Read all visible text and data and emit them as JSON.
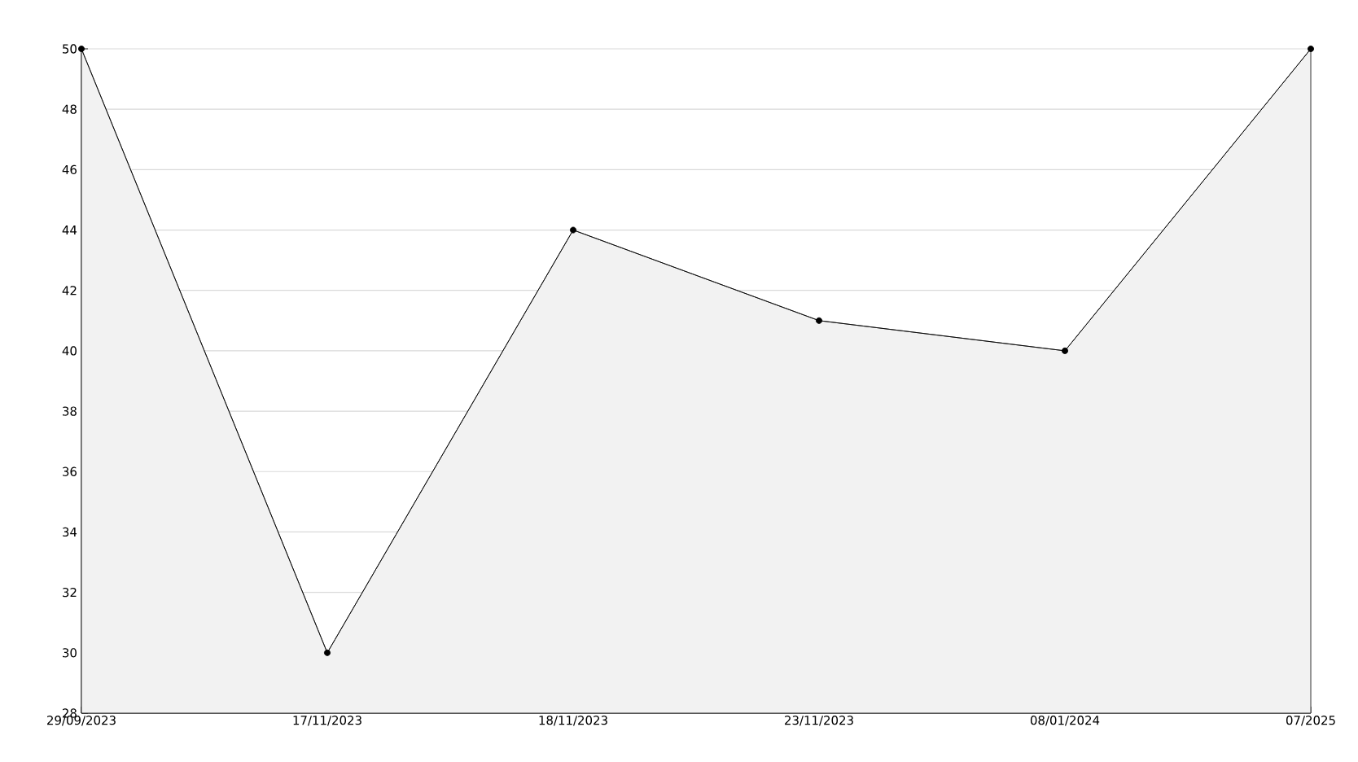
{
  "chart_data": {
    "type": "area",
    "categories": [
      "29/09/2023",
      "17/11/2023",
      "18/11/2023",
      "23/11/2023",
      "08/01/2024",
      "07/2025"
    ],
    "series": [
      {
        "color": "#000000",
        "values": [
          50,
          30,
          44,
          41,
          40,
          50
        ]
      }
    ],
    "ylim": [
      28,
      50
    ],
    "yticks": [
      28,
      30,
      32,
      34,
      36,
      38,
      40,
      42,
      44,
      46,
      48,
      50
    ],
    "grid": "y",
    "marker": "circle",
    "line_style": "solid"
  }
}
